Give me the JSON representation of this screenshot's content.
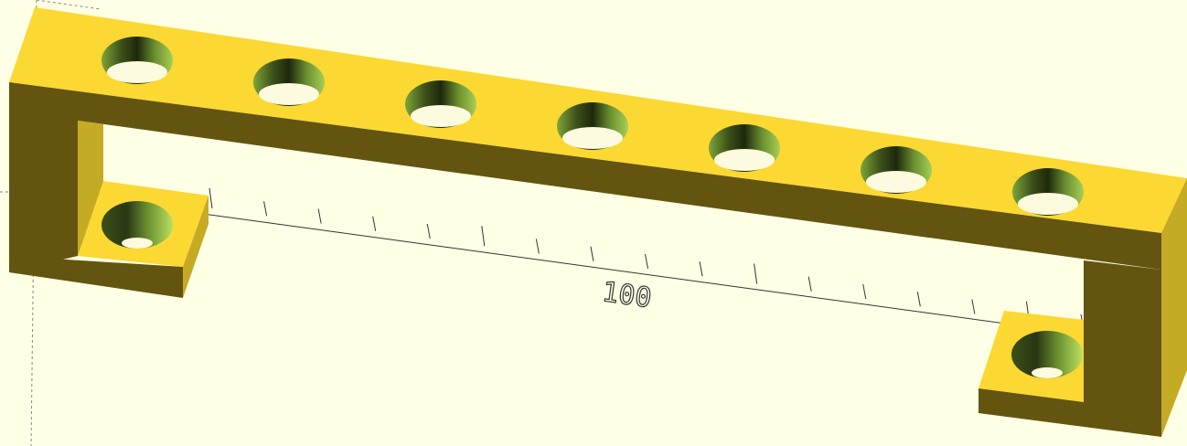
{
  "app": "OpenSCAD",
  "viewport": {
    "background": "#ffffe5",
    "axis_label": "100",
    "axis_tick_count": 17
  },
  "colors": {
    "top_face": "#fcd832",
    "front_face": "#635510",
    "side_face": "#c5aa24",
    "hole_dark": "#2a3614",
    "hole_mid": "#5b7a2c",
    "hole_light": "#a7cf55",
    "axis": "#333333"
  },
  "model": {
    "name": "bracket",
    "top_holes": 7,
    "foot_holes": 2
  }
}
